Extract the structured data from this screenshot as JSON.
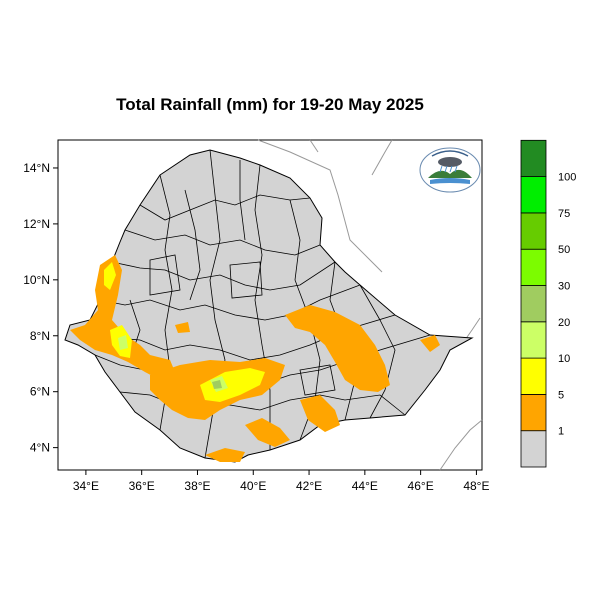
{
  "title": "Total Rainfall (mm) for 19-20 May 2025",
  "axes": {
    "lon_ticks": [
      {
        "value": 34,
        "label": "34°E"
      },
      {
        "value": 36,
        "label": "36°E"
      },
      {
        "value": 38,
        "label": "38°E"
      },
      {
        "value": 40,
        "label": "40°E"
      },
      {
        "value": 42,
        "label": "42°E"
      },
      {
        "value": 44,
        "label": "44°E"
      },
      {
        "value": 46,
        "label": "46°E"
      },
      {
        "value": 48,
        "label": "48°E"
      }
    ],
    "lat_ticks": [
      {
        "value": 14,
        "label": "14°N"
      },
      {
        "value": 12,
        "label": "12°N"
      },
      {
        "value": 10,
        "label": "10°N"
      },
      {
        "value": 8,
        "label": "8°N"
      },
      {
        "value": 6,
        "label": "6°N"
      },
      {
        "value": 4,
        "label": "4°N"
      }
    ],
    "lon_range": [
      33,
      48.2
    ],
    "lat_range": [
      3.2,
      15
    ]
  },
  "legend": {
    "bins": [
      {
        "color": "#d3d3d3",
        "label": "1"
      },
      {
        "color": "#ffa500",
        "label": "5"
      },
      {
        "color": "#ffff00",
        "label": "10"
      },
      {
        "color": "#ccff66",
        "label": "20"
      },
      {
        "color": "#a0cc60",
        "label": "30"
      },
      {
        "color": "#7cfc00",
        "label": "50"
      },
      {
        "color": "#66cc00",
        "label": "75"
      },
      {
        "color": "#00ee00",
        "label": "100"
      },
      {
        "color": "#228b22",
        "label": ""
      }
    ]
  },
  "colors": {
    "country_fill": "#d3d3d3",
    "rain_1_5": "#ffa500",
    "rain_5_10": "#ffff00",
    "rain_10_20": "#ccff66",
    "rain_20_30": "#a0cc60",
    "neighbor_border": "#999999",
    "admin_border": "#000000"
  },
  "logo": {
    "name": "ethiopian-meteorology-logo"
  }
}
